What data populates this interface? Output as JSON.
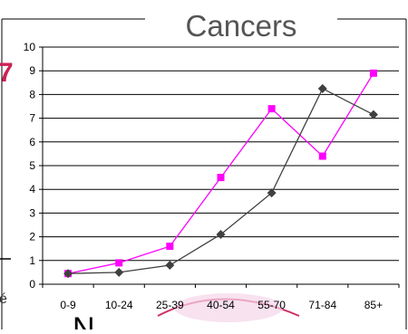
{
  "chart_data": {
    "type": "line",
    "title": "Cancers",
    "categories": [
      "0-9",
      "10-24",
      "25-39",
      "40-54",
      "55-70",
      "71-84",
      "85+"
    ],
    "ylim": [
      0,
      10
    ],
    "yticks": [
      "0",
      "1",
      "2",
      "3",
      "4",
      "5",
      "6",
      "7",
      "8",
      "9",
      "10"
    ],
    "grid": true,
    "series": [
      {
        "color": "#ff00ff",
        "marker": "square",
        "values": [
          0.45,
          0.9,
          1.6,
          4.5,
          7.4,
          5.4,
          8.9
        ]
      },
      {
        "color": "#404040",
        "marker": "diamond",
        "values": [
          0.45,
          0.5,
          0.8,
          2.1,
          3.85,
          8.25,
          7.15
        ]
      }
    ],
    "partially_hidden_text": {
      "left_fragment_1": "7",
      "left_fragment_2": "é",
      "bottom_text": "N"
    }
  }
}
